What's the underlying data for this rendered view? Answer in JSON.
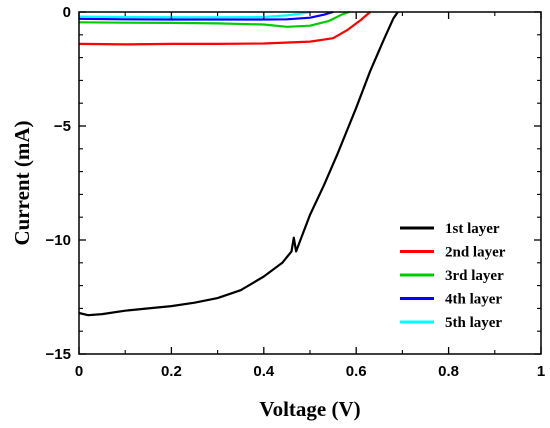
{
  "chart_data": {
    "type": "line",
    "title": "",
    "xlabel": "Voltage (V)",
    "ylabel": "Current (mA)",
    "xlim": [
      0,
      1
    ],
    "ylim": [
      -15,
      0
    ],
    "xticks": [
      0,
      0.2,
      0.4,
      0.6,
      0.8,
      1
    ],
    "xtick_labels": [
      "0",
      "0.2",
      "0.4",
      "0.6",
      "0.8",
      "1"
    ],
    "yticks": [
      0,
      -5,
      -10,
      -15
    ],
    "ytick_labels": [
      "0",
      "−5",
      "−10",
      "−15"
    ],
    "grid": false,
    "legend_position": "bottom-right",
    "series": [
      {
        "name": "1st layer",
        "color": "#000000",
        "x": [
          0,
          0.02,
          0.05,
          0.1,
          0.15,
          0.2,
          0.25,
          0.3,
          0.35,
          0.4,
          0.44,
          0.46,
          0.465,
          0.47,
          0.5,
          0.53,
          0.56,
          0.6,
          0.63,
          0.66,
          0.68,
          0.69
        ],
        "y": [
          -13.2,
          -13.3,
          -13.25,
          -13.1,
          -13.0,
          -12.9,
          -12.75,
          -12.55,
          -12.2,
          -11.6,
          -11.0,
          -10.5,
          -9.9,
          -10.5,
          -8.9,
          -7.6,
          -6.2,
          -4.2,
          -2.6,
          -1.2,
          -0.3,
          0
        ]
      },
      {
        "name": "2nd layer",
        "color": "#ff0000",
        "x": [
          0,
          0.1,
          0.2,
          0.3,
          0.4,
          0.5,
          0.55,
          0.58,
          0.61,
          0.63
        ],
        "y": [
          -1.4,
          -1.42,
          -1.4,
          -1.4,
          -1.38,
          -1.3,
          -1.15,
          -0.8,
          -0.35,
          0
        ]
      },
      {
        "name": "3rd layer",
        "color": "#00cc00",
        "x": [
          0,
          0.1,
          0.2,
          0.3,
          0.4,
          0.45,
          0.5,
          0.54,
          0.57,
          0.585
        ],
        "y": [
          -0.45,
          -0.47,
          -0.48,
          -0.5,
          -0.55,
          -0.65,
          -0.6,
          -0.4,
          -0.1,
          0
        ]
      },
      {
        "name": "4th layer",
        "color": "#0000ff",
        "x": [
          0,
          0.1,
          0.2,
          0.3,
          0.4,
          0.45,
          0.5,
          0.53,
          0.55
        ],
        "y": [
          -0.3,
          -0.32,
          -0.33,
          -0.33,
          -0.33,
          -0.32,
          -0.25,
          -0.12,
          0
        ]
      },
      {
        "name": "5th layer",
        "color": "#00ffff",
        "x": [
          0,
          0.1,
          0.2,
          0.3,
          0.4,
          0.45,
          0.48,
          0.5
        ],
        "y": [
          -0.2,
          -0.22,
          -0.23,
          -0.23,
          -0.22,
          -0.15,
          -0.07,
          0
        ]
      }
    ]
  }
}
